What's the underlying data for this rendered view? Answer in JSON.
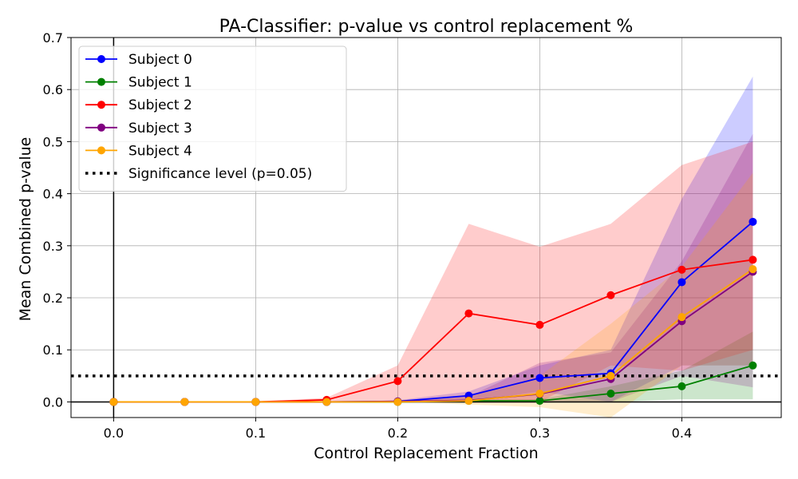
{
  "chart_data": {
    "type": "line",
    "title": "PA-Classifier: p-value vs control replacement %",
    "xlabel": "Control Replacement Fraction",
    "ylabel": "Mean Combined p-value",
    "xlim": [
      -0.03,
      0.47
    ],
    "ylim": [
      -0.03,
      0.7
    ],
    "xticks": [
      0.0,
      0.1,
      0.2,
      0.3,
      0.4
    ],
    "xtick_labels": [
      "0.0",
      "0.1",
      "0.2",
      "0.3",
      "0.4"
    ],
    "yticks": [
      0.0,
      0.1,
      0.2,
      0.3,
      0.4,
      0.5,
      0.6,
      0.7
    ],
    "ytick_labels": [
      "0.0",
      "0.1",
      "0.2",
      "0.3",
      "0.4",
      "0.5",
      "0.6",
      "0.7"
    ],
    "grid": true,
    "legend_position": "upper-left",
    "x": [
      0.0,
      0.05,
      0.1,
      0.15,
      0.2,
      0.25,
      0.3,
      0.35,
      0.4,
      0.45
    ],
    "series": [
      {
        "name": "Subject 0",
        "color": "#0000ff",
        "band_color": "#0000ff",
        "values": [
          0.0,
          0.0,
          0.0,
          0.0,
          0.001,
          0.012,
          0.046,
          0.055,
          0.23,
          0.346
        ],
        "lower": [
          0.0,
          0.0,
          0.0,
          0.0,
          0.0,
          0.0,
          0.02,
          0.0,
          0.07,
          0.07
        ],
        "upper": [
          0.0,
          0.0,
          0.0,
          0.0,
          0.003,
          0.02,
          0.07,
          0.1,
          0.39,
          0.625
        ]
      },
      {
        "name": "Subject 1",
        "color": "#008000",
        "band_color": "#008000",
        "values": [
          0.0,
          0.0,
          0.0,
          0.0,
          0.0,
          0.002,
          0.002,
          0.016,
          0.03,
          0.07
        ],
        "lower": [
          0.0,
          0.0,
          0.0,
          0.0,
          0.0,
          0.0,
          0.0,
          0.0,
          0.005,
          0.005
        ],
        "upper": [
          0.0,
          0.0,
          0.0,
          0.0,
          0.0,
          0.004,
          0.005,
          0.03,
          0.06,
          0.135
        ]
      },
      {
        "name": "Subject 2",
        "color": "#ff0000",
        "band_color": "#ff0000",
        "values": [
          0.0,
          0.0,
          0.0,
          0.004,
          0.04,
          0.17,
          0.148,
          0.205,
          0.254,
          0.273
        ],
        "lower": [
          0.0,
          0.0,
          0.0,
          0.0,
          0.0,
          0.0,
          0.0,
          0.07,
          0.06,
          0.1
        ],
        "upper": [
          0.0,
          0.0,
          0.0,
          0.008,
          0.07,
          0.342,
          0.298,
          0.342,
          0.455,
          0.5
        ]
      },
      {
        "name": "Subject 3",
        "color": "#800080",
        "band_color": "#800080",
        "values": [
          0.0,
          0.0,
          0.0,
          0.0,
          0.001,
          0.003,
          0.015,
          0.044,
          0.155,
          0.25
        ],
        "lower": [
          0.0,
          0.0,
          0.0,
          0.0,
          0.0,
          0.0,
          0.0,
          0.0,
          0.05,
          0.028
        ],
        "upper": [
          0.0,
          0.0,
          0.0,
          0.0,
          0.003,
          0.01,
          0.075,
          0.095,
          0.27,
          0.515
        ]
      },
      {
        "name": "Subject 4",
        "color": "#ffa500",
        "band_color": "#ffa500",
        "values": [
          0.0,
          0.0,
          0.0,
          0.0,
          0.0,
          0.002,
          0.016,
          0.05,
          0.163,
          0.255
        ],
        "lower": [
          0.0,
          0.0,
          0.0,
          0.0,
          0.0,
          -0.005,
          -0.01,
          -0.03,
          0.07,
          0.07
        ],
        "upper": [
          0.0,
          0.0,
          0.0,
          0.0,
          0.0,
          0.01,
          0.05,
          0.15,
          0.26,
          0.44
        ]
      }
    ],
    "reference_lines": [
      {
        "name": "Significance level (p=0.05)",
        "orientation": "horizontal",
        "value": 0.05,
        "style": "dotted",
        "color": "#000000"
      },
      {
        "orientation": "horizontal",
        "value": 0.0,
        "style": "solid",
        "color": "#000000"
      },
      {
        "orientation": "vertical",
        "value": 0.0,
        "style": "solid",
        "color": "#000000"
      }
    ]
  }
}
